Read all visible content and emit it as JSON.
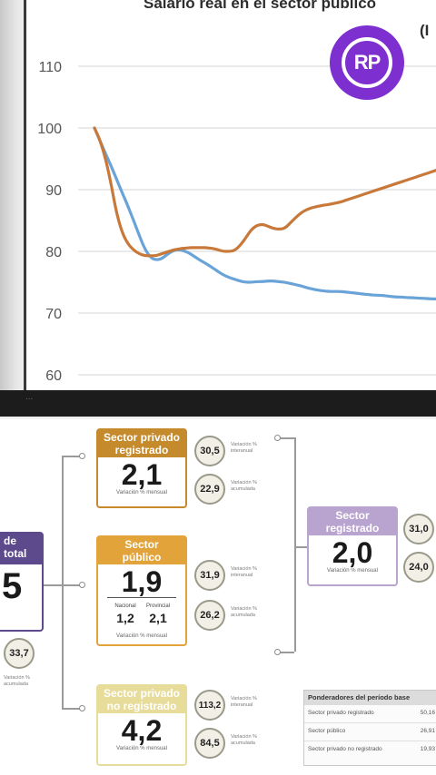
{
  "chart_data": {
    "type": "line",
    "title": "Salario real en el sector público",
    "title_extra": "(I",
    "yticks": [
      "110",
      "100",
      "90",
      "80",
      "70",
      "60"
    ],
    "ylim": [
      60,
      110
    ],
    "grid": true,
    "x": [
      0,
      1,
      2,
      3,
      4,
      5,
      6,
      7,
      8,
      9,
      10,
      11,
      12,
      13,
      14,
      15,
      16,
      17,
      18,
      19,
      20,
      21,
      22,
      23,
      24,
      25,
      26,
      27,
      28,
      29,
      30,
      31,
      32,
      33,
      34,
      35,
      36,
      37,
      38,
      39,
      40,
      41,
      42,
      43,
      44,
      45,
      46,
      47,
      48,
      49,
      50,
      51,
      52,
      53,
      54,
      55,
      56,
      57,
      58,
      59,
      60,
      61,
      62,
      63,
      64,
      65,
      66,
      67,
      68,
      69,
      70,
      71,
      72,
      73,
      74,
      75,
      76,
      77,
      78,
      79,
      80
    ],
    "series": [
      {
        "color": "#6aa3d8",
        "values": [
          100.0,
          97.9,
          95.8,
          93.8,
          91.6,
          89.4,
          87.3,
          85.0,
          82.6,
          80.4,
          79.0,
          78.6,
          78.8,
          79.5,
          80.1,
          80.3,
          80.1,
          79.7,
          79.1,
          78.5,
          78.0,
          77.4,
          76.8,
          76.2,
          75.8,
          75.5,
          75.2,
          75.0,
          75.0,
          75.1,
          75.1,
          75.2,
          75.2,
          75.1,
          75.0,
          74.8,
          74.6,
          74.4,
          74.1,
          73.9,
          73.7,
          73.6,
          73.5,
          73.5,
          73.5,
          73.4,
          73.3,
          73.2,
          73.1,
          73.0,
          72.9,
          72.9,
          72.8,
          72.7,
          72.6,
          72.6,
          72.5,
          72.5,
          72.4,
          72.4,
          72.3,
          72.3,
          72.3,
          72.2,
          72.2,
          72.2,
          72.1,
          72.1,
          72.1,
          72.0,
          72.0,
          72.0,
          72.0,
          71.9,
          71.9,
          71.9,
          71.8,
          71.8,
          71.8,
          71.7,
          71.7
        ]
      },
      {
        "color": "#c8793a",
        "values": [
          100.0,
          98.0,
          95.0,
          90.8,
          86.0,
          82.9,
          81.2,
          80.2,
          79.6,
          79.3,
          79.3,
          79.3,
          79.6,
          79.9,
          80.2,
          80.4,
          80.5,
          80.6,
          80.6,
          80.6,
          80.6,
          80.5,
          80.3,
          80.0,
          80.0,
          80.1,
          80.9,
          82.1,
          83.5,
          84.2,
          84.4,
          84.1,
          83.7,
          83.6,
          83.7,
          84.6,
          85.5,
          86.3,
          86.8,
          87.1,
          87.3,
          87.5,
          87.6,
          87.8,
          88.0,
          88.3,
          88.6,
          88.9,
          89.2,
          89.5,
          89.8,
          90.1,
          90.4,
          90.7,
          91.0,
          91.3,
          91.6,
          91.9,
          92.2,
          92.5,
          92.8,
          93.1,
          93.4,
          93.7,
          94.0,
          94.3,
          94.6,
          94.9,
          95.2,
          95.5,
          95.8,
          96.1,
          96.4,
          96.7,
          97.0,
          97.3,
          97.6,
          97.9,
          98.2,
          98.5,
          98.8
        ]
      }
    ]
  },
  "logo": {
    "text": "RP",
    "color": "#7d2fd0"
  },
  "watermark": "...",
  "diagram": {
    "left_box": {
      "header": "de\ntotal",
      "value": "5",
      "color": "#5c4a8c"
    },
    "left_circle": "33,7",
    "left_circle_label": "Variación %\nacumulada",
    "boxes": [
      {
        "header": "Sector privado\nregistrado",
        "value": "2,1",
        "sub": "Variación % mensual",
        "color": "#c48a2c",
        "circle_a": "30,5",
        "label_a": "Variación %\ninteranual",
        "circle_b": "22,9",
        "label_b": "Variación %\nacumulada"
      },
      {
        "header": "Sector\npúblico",
        "value": "1,9",
        "sub": "Variación % mensual",
        "color": "#e2a33a",
        "circle_a": "31,9",
        "label_a": "Variación %\ninteranual",
        "circle_b": "26,2",
        "label_b": "Variación %\nacumulada",
        "split": {
          "left_label": "Nacional",
          "left_value": "1,2",
          "right_label": "Provincial",
          "right_value": "2,1"
        }
      },
      {
        "header": "Sector privado\nno registrado",
        "value": "4,2",
        "sub": "Variación % mensual",
        "color": "#e7dc9a",
        "circle_a": "113,2",
        "label_a": "Variación %\ninteranual",
        "circle_b": "84,5",
        "label_b": "Variación %\nacumulada"
      }
    ],
    "right_box": {
      "header": "Sector\nregistrado",
      "value": "2,0",
      "sub": "Variación % mensual",
      "color": "#b9a4cf",
      "circle_a": "31,0",
      "circle_b": "24,0"
    },
    "weights": {
      "title": "Ponderadores del período base",
      "rows": [
        {
          "label": "Sector privado registrado",
          "value": "50,16"
        },
        {
          "label": "Sector público",
          "value": "26,91"
        },
        {
          "label": "Sector privado no registrado",
          "value": "19,93"
        }
      ]
    }
  }
}
